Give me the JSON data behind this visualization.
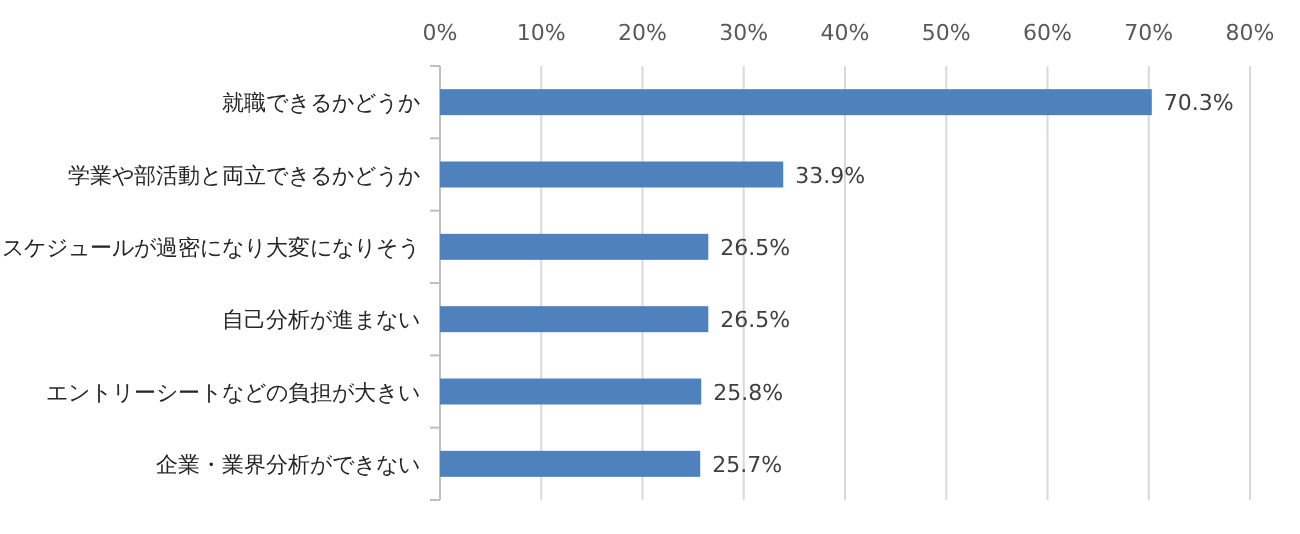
{
  "chart_data": {
    "type": "bar",
    "orientation": "horizontal",
    "categories": [
      "就職できるかどうか",
      "学業や部活動と両立できるかどうか",
      "スケジュールが過密になり大変になりそう",
      "自己分析が進まない",
      "エントリーシートなどの負担が大きい",
      "企業・業界分析ができない"
    ],
    "values": [
      70.3,
      33.9,
      26.5,
      26.5,
      25.8,
      25.7
    ],
    "value_labels": [
      "70.3%",
      "33.9%",
      "26.5%",
      "26.5%",
      "25.8%",
      "25.7%"
    ],
    "color": "#4f81bd",
    "xlim": [
      0,
      80
    ],
    "xticks": [
      {
        "value": 0,
        "label": "0%"
      },
      {
        "value": 10,
        "label": "10%"
      },
      {
        "value": 20,
        "label": "20%"
      },
      {
        "value": 30,
        "label": "30%"
      },
      {
        "value": 40,
        "label": "40%"
      },
      {
        "value": 50,
        "label": "50%"
      },
      {
        "value": 60,
        "label": "60%"
      },
      {
        "value": 70,
        "label": "70%"
      },
      {
        "value": 80,
        "label": "80%"
      }
    ],
    "grid": "x"
  }
}
